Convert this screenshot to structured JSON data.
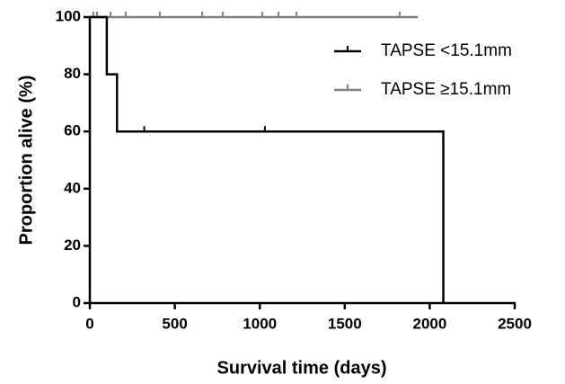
{
  "chart_data": {
    "type": "line",
    "step": true,
    "x_label": "Survival time (days)",
    "y_label": "Proportion alive (%)",
    "xlim": [
      0,
      2500
    ],
    "xticks": [
      0,
      500,
      1000,
      1500,
      2000,
      2500
    ],
    "ylim": [
      0,
      100
    ],
    "yticks": [
      0,
      20,
      40,
      60,
      80,
      100
    ],
    "legend": "upper right",
    "series": [
      {
        "name": "TAPSE <15.1mm",
        "color": "#000000",
        "x": [
          0,
          100,
          160,
          2080
        ],
        "values": [
          100,
          80,
          60,
          0
        ],
        "censor_x": [
          320,
          1030
        ],
        "censor_values": [
          60,
          60
        ]
      },
      {
        "name": "TAPSE ≥15.1mm",
        "color": "#808080",
        "x": [
          0,
          1930
        ],
        "values": [
          100,
          100
        ],
        "censor_x": [
          21,
          42,
          122,
          211,
          412,
          661,
          782,
          1015,
          1110,
          1216,
          1823
        ],
        "censor_values": [
          100,
          100,
          100,
          100,
          100,
          100,
          100,
          100,
          100,
          100,
          100
        ]
      }
    ]
  }
}
